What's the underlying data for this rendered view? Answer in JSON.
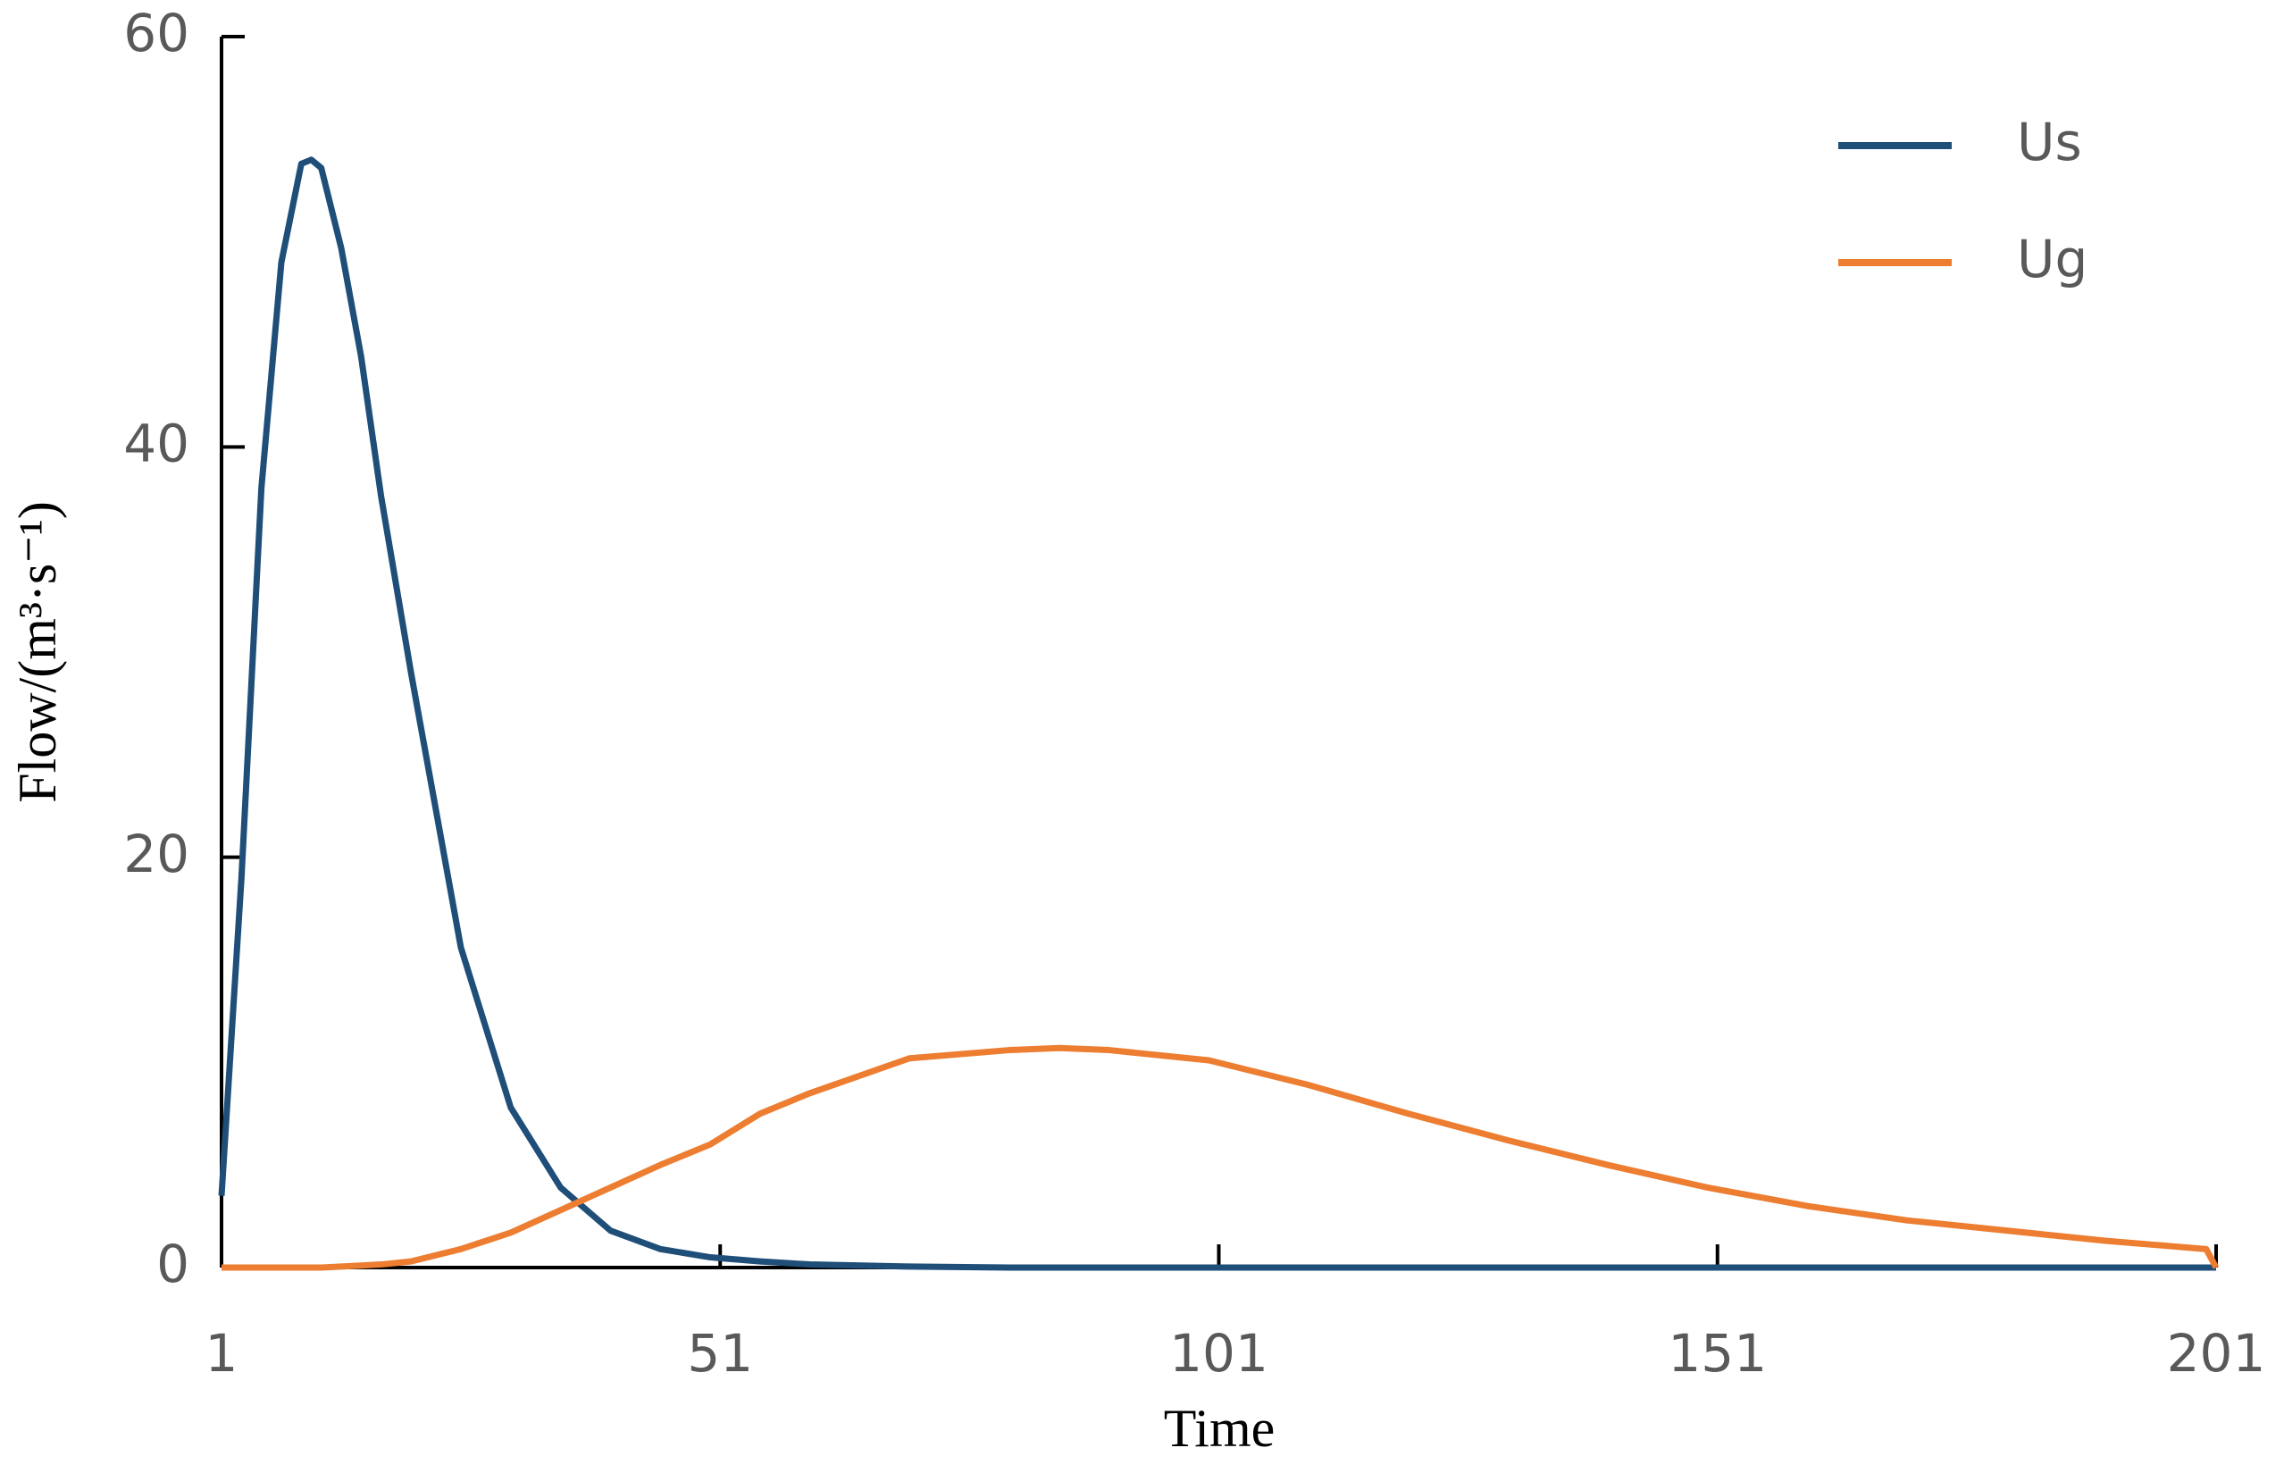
{
  "chart_data": {
    "type": "line",
    "x_label": "Time",
    "y_label": "Flow/(m³·s⁻¹)",
    "x": [
      1,
      3,
      5,
      7,
      9,
      10,
      11,
      13,
      15,
      17,
      20,
      25,
      30,
      35,
      40,
      45,
      50,
      55,
      60,
      70,
      80,
      85,
      90,
      100,
      110,
      120,
      130,
      140,
      150,
      160,
      170,
      180,
      190,
      200,
      201
    ],
    "series": [
      {
        "name": "Us",
        "color": "#1f4e79",
        "values": [
          3.5,
          19,
          38,
          49,
          53.8,
          54,
          53.6,
          49.7,
          44.4,
          37.6,
          29,
          15.6,
          7.8,
          3.9,
          1.8,
          0.9,
          0.5,
          0.3,
          0.15,
          0.05,
          0,
          0,
          0,
          0,
          0,
          0,
          0,
          0,
          0,
          0,
          0,
          0,
          0,
          0,
          0
        ]
      },
      {
        "name": "Ug",
        "color": "#ed7d31",
        "values": [
          0,
          0,
          0,
          0,
          0,
          0,
          0,
          0.05,
          0.1,
          0.15,
          0.3,
          0.9,
          1.7,
          2.8,
          3.9,
          5,
          6,
          7.5,
          8.5,
          10.2,
          10.6,
          10.7,
          10.6,
          10.1,
          8.9,
          7.5,
          6.2,
          5,
          3.9,
          3,
          2.3,
          1.8,
          1.3,
          0.9,
          0
        ]
      }
    ],
    "xlim": [
      1,
      201
    ],
    "xticks": [
      1,
      51,
      101,
      151,
      201
    ],
    "ylim": [
      0,
      60
    ],
    "yticks": [
      0,
      20,
      40,
      60
    ],
    "legend": "top-right"
  }
}
